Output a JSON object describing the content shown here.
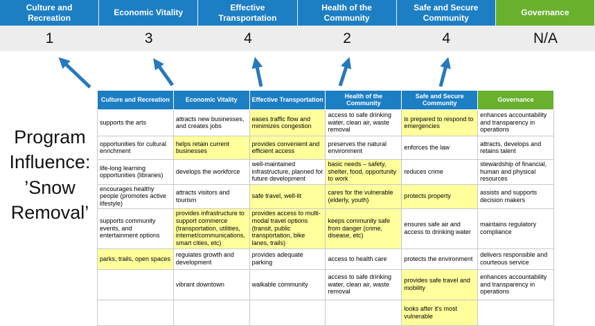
{
  "title_text": "Program Influence: ’Snow Removal’",
  "colors": {
    "header_blue": "#1c7ec3",
    "header_green": "#68b02e",
    "highlight_yellow": "#ffff9c",
    "score_row_bg": "#ededed",
    "arrow_blue": "#2779bd",
    "table_border": "#c8c8c8"
  },
  "categories": [
    {
      "label": "Culture and Recreation",
      "score": "1",
      "type": "blue"
    },
    {
      "label": "Economic Vitality",
      "score": "3",
      "type": "blue"
    },
    {
      "label": "Effective Transportation",
      "score": "4",
      "type": "blue"
    },
    {
      "label": "Health of the Community",
      "score": "2",
      "type": "blue"
    },
    {
      "label": "Safe and Secure Community",
      "score": "4",
      "type": "blue"
    },
    {
      "label": "Governance",
      "score": "N/A",
      "type": "green"
    }
  ],
  "matrix": {
    "rows": [
      {
        "cells": [
          {
            "text": "supports the arts",
            "hl": false
          },
          {
            "text": "attracts new businesses, and creates jobs",
            "hl": false
          },
          {
            "text": "eases traffic flow and minimizes congestion",
            "hl": true
          },
          {
            "text": "access to safe drinking water, clean air, waste removal",
            "hl": false
          },
          {
            "text": "is prepared to respond to emergencies",
            "hl": true
          },
          {
            "text": "enhances accountability and transparency in operations",
            "hl": false
          }
        ]
      },
      {
        "cells": [
          {
            "text": "opportunities for cultural enrichment",
            "hl": false
          },
          {
            "text": "helps retain current businesses",
            "hl": true
          },
          {
            "text": "provides convenient and efficient access",
            "hl": true
          },
          {
            "text": "preserves the natural environment",
            "hl": false
          },
          {
            "text": "enforces the law",
            "hl": false
          },
          {
            "text": "attracts, develops and retains talent",
            "hl": false
          }
        ]
      },
      {
        "cells": [
          {
            "text": "life-long learning opportunities (libraries)",
            "hl": false
          },
          {
            "text": "develops the workforce",
            "hl": false
          },
          {
            "text": "well-maintained infrastructure, planned for future development",
            "hl": false
          },
          {
            "text": "basic needs – safety, shelter, food, opportunity to work",
            "hl": true
          },
          {
            "text": "reduces crime",
            "hl": false
          },
          {
            "text": "stewardship of financial, human and physical resources",
            "hl": false
          }
        ]
      },
      {
        "cells": [
          {
            "text": "encourages healthy people (promotes active lifestyle)",
            "hl": false
          },
          {
            "text": "attracts visitors and tourism",
            "hl": false
          },
          {
            "text": "safe travel, well-lit",
            "hl": true
          },
          {
            "text": "cares for the vulnerable (elderly, youth)",
            "hl": true
          },
          {
            "text": "protects property",
            "hl": true
          },
          {
            "text": "assists and supports decision makers",
            "hl": false
          }
        ]
      },
      {
        "cells": [
          {
            "text": "supports community events, and entertainment options",
            "hl": false
          },
          {
            "text": "provides infrastructure to support commerce (transportation, utilities, internet/communications, smart cities, etc)",
            "hl": true
          },
          {
            "text": "provides access to multi-modal travel options (transit, public transportation, bike lanes, trails)",
            "hl": true
          },
          {
            "text": "keeps community safe from danger (crime, disease, etc)",
            "hl": true
          },
          {
            "text": "ensures safe air and access to drinking water",
            "hl": false
          },
          {
            "text": "maintains regulatory compliance",
            "hl": false
          }
        ]
      },
      {
        "cells": [
          {
            "text": "parks, trails, open spaces",
            "hl": true
          },
          {
            "text": "regulates growth and development",
            "hl": false
          },
          {
            "text": "provides adequate parking",
            "hl": false
          },
          {
            "text": "access to health care",
            "hl": false
          },
          {
            "text": "protects the environment",
            "hl": false
          },
          {
            "text": "delivers responsible and courteous service",
            "hl": false
          }
        ]
      },
      {
        "cells": [
          {
            "text": "",
            "hl": false
          },
          {
            "text": "vibrant downtown",
            "hl": false
          },
          {
            "text": "walkable community",
            "hl": false
          },
          {
            "text": "access to safe drinking water, clean air, waste removal",
            "hl": false
          },
          {
            "text": "provides safe travel and mobility",
            "hl": true
          },
          {
            "text": "enhances accountability and transparency in operations",
            "hl": false
          }
        ]
      },
      {
        "cells": [
          {
            "text": "",
            "hl": false
          },
          {
            "text": "",
            "hl": false
          },
          {
            "text": "",
            "hl": false
          },
          {
            "text": "",
            "hl": false
          },
          {
            "text": "looks after it's most vulnerable",
            "hl": true
          },
          {
            "text": "",
            "hl": false
          }
        ]
      }
    ]
  }
}
